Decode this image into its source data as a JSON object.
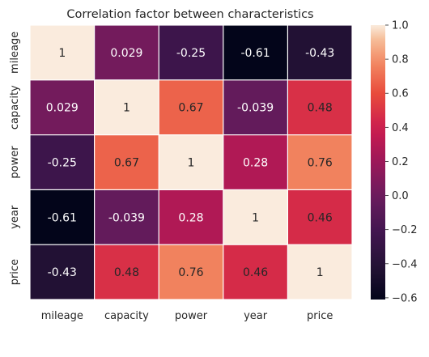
{
  "chart_data": {
    "type": "heatmap",
    "title": "Correlation factor between characteristics",
    "xlabel": "",
    "ylabel": "",
    "x_categories": [
      "mileage",
      "capacity",
      "power",
      "year",
      "price"
    ],
    "y_categories": [
      "mileage",
      "capacity",
      "power",
      "year",
      "price"
    ],
    "values": [
      [
        1,
        0.029,
        -0.25,
        -0.61,
        -0.43
      ],
      [
        0.029,
        1,
        0.67,
        -0.039,
        0.48
      ],
      [
        -0.25,
        0.67,
        1,
        0.28,
        0.76
      ],
      [
        -0.61,
        -0.039,
        0.28,
        1,
        0.46
      ],
      [
        -0.43,
        0.48,
        0.76,
        0.46,
        1
      ]
    ],
    "cell_labels": [
      [
        "1",
        "0.029",
        "-0.25",
        "-0.61",
        "-0.43"
      ],
      [
        "0.029",
        "1",
        "0.67",
        "-0.039",
        "0.48"
      ],
      [
        "-0.25",
        "0.67",
        "1",
        "0.28",
        "0.76"
      ],
      [
        "-0.61",
        "-0.039",
        "0.28",
        "1",
        "0.46"
      ],
      [
        "-0.43",
        "0.48",
        "0.76",
        "0.46",
        "1"
      ]
    ],
    "colorbar": {
      "range": [
        -0.61,
        1
      ],
      "ticks": [
        -0.6,
        -0.4,
        -0.2,
        0.0,
        0.2,
        0.4,
        0.6,
        0.8,
        1.0
      ],
      "tick_labels": [
        "−0.6",
        "−0.4",
        "−0.2",
        "0.0",
        "0.2",
        "0.4",
        "0.6",
        "0.8",
        "1.0"
      ],
      "colormap": "rocket",
      "placement": "right"
    }
  }
}
